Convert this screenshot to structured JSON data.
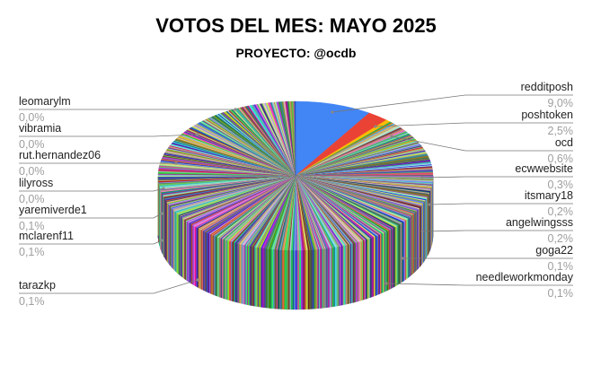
{
  "chart_data": {
    "type": "pie",
    "title": "VOTOS DEL MES: MAYO 2025",
    "subtitle": "PROYECTO: @ocdb",
    "style": "3d",
    "slices": [
      {
        "name": "redditposh",
        "value_label": "9,0%",
        "value": 9.0,
        "color": "#4285f4"
      },
      {
        "name": "poshtoken",
        "value_label": "2,5%",
        "value": 2.5,
        "color": "#ea4335"
      },
      {
        "name": "ocd",
        "value_label": "0,6%",
        "value": 0.6,
        "color": "#fbbc04"
      },
      {
        "name": "ecwwebsite",
        "value_label": "0,3%",
        "value": 0.3,
        "color": "#34a853"
      },
      {
        "name": "itsmary18",
        "value_label": "0,2%",
        "value": 0.2,
        "color": "#ff6d01"
      },
      {
        "name": "angelwingsss",
        "value_label": "0,2%",
        "value": 0.2,
        "color": "#46bdc6"
      },
      {
        "name": "goga22",
        "value_label": "0,1%",
        "value": 0.1,
        "color": "#7baaf7"
      },
      {
        "name": "needleworkmonday",
        "value_label": "0,1%",
        "value": 0.1,
        "color": "#f07b72"
      },
      {
        "name": "tarazkp",
        "value_label": "0,1%",
        "value": 0.1,
        "color": "#fcd04f"
      },
      {
        "name": "mclarenf11",
        "value_label": "0,1%",
        "value": 0.1,
        "color": "#71c287"
      },
      {
        "name": "yaremiverde1",
        "value_label": "0,1%",
        "value": 0.1,
        "color": "#ff994d"
      },
      {
        "name": "lilyross",
        "value_label": "0,0%",
        "value": 0.0,
        "color": "#7ed1d7"
      },
      {
        "name": "rut.hernandez06",
        "value_label": "0,0%",
        "value": 0.0,
        "color": "#b3cefb"
      },
      {
        "name": "vibramia",
        "value_label": "0,0%",
        "value": 0.0,
        "color": "#f7b4ae"
      },
      {
        "name": "leomarylm",
        "value_label": "0,0%",
        "value": 0.0,
        "color": "#fde49b"
      }
    ],
    "legend": "none",
    "labels_position": "outside-with-leader-lines"
  }
}
